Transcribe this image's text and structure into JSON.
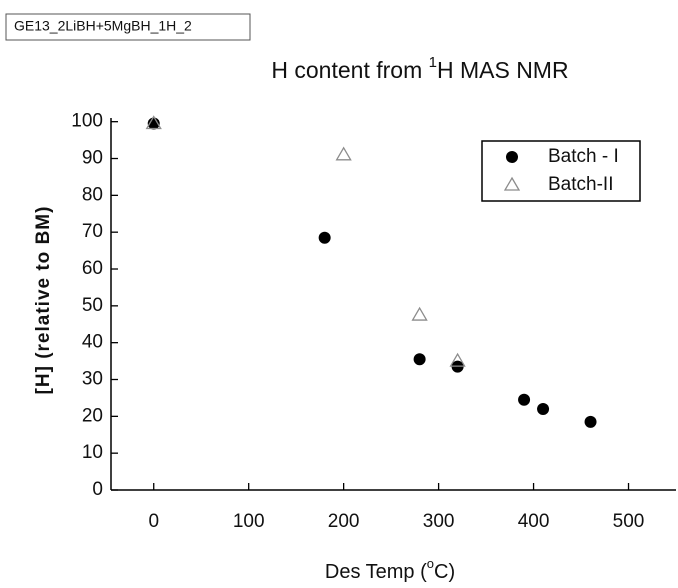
{
  "tag": "GE13_2LiBH+5MgBH_1H_2",
  "chart_data": {
    "type": "scatter",
    "title_parts": [
      "H content from ",
      "1",
      "H MAS NMR"
    ],
    "x_label_parts": [
      "Des Temp (",
      "o",
      "C)"
    ],
    "y_label": "[H] (relative to BM)",
    "xlim": [
      -45,
      550
    ],
    "xticks": [
      0,
      100,
      200,
      300,
      400,
      500
    ],
    "ylim": [
      0,
      101
    ],
    "yticks": [
      0,
      10,
      20,
      30,
      40,
      50,
      60,
      70,
      80,
      90,
      100
    ],
    "legend": "upper right",
    "series": [
      {
        "name": "Batch - I",
        "color": "#000000",
        "marker": "circle",
        "x": [
          0,
          180,
          280,
          320,
          390,
          410,
          460
        ],
        "values": [
          99.5,
          68.5,
          35.5,
          33.5,
          24.5,
          22,
          18.5
        ]
      },
      {
        "name": "Batch-II",
        "color": "#8c8c8c",
        "marker": "triangle",
        "x": [
          0,
          200,
          280,
          320
        ],
        "values": [
          99.5,
          91,
          47.5,
          35
        ]
      }
    ]
  }
}
